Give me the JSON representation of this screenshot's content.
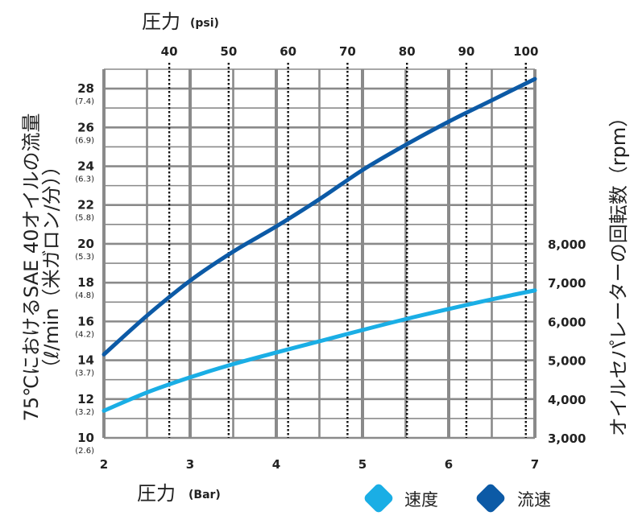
{
  "chart_data": {
    "type": "line",
    "x": [
      2,
      3,
      4,
      5,
      6,
      7
    ],
    "xlabel": "圧力",
    "xlabel_unit": "(Bar)",
    "xlim": [
      2,
      7
    ],
    "x2label": "圧力",
    "x2label_unit": "(psi)",
    "x2_ticks": [
      40,
      50,
      60,
      70,
      80,
      90,
      100
    ],
    "x2_bar_equivalent": [
      2.758,
      3.447,
      4.137,
      4.826,
      5.516,
      6.205,
      6.895
    ],
    "ylabel_line1": "75℃におけるSAE 40オイルの流量",
    "ylabel_line2": "（ℓ/min（米ガロン/分））",
    "ylim": [
      10,
      29
    ],
    "y_ticks": [
      10,
      12,
      14,
      16,
      18,
      20,
      22,
      24,
      26,
      28
    ],
    "y_sub_ticks": [
      "(2.6)",
      "(3.2)",
      "(3.7)",
      "(4.2)",
      "(4.8)",
      "(5.3)",
      "(5.8)",
      "(6.3)",
      "(6.9)",
      "(7.4)"
    ],
    "y2label": "オイルセパレーターの回転数（rpm）",
    "y2lim": [
      3000,
      8000
    ],
    "y2_ticks": [
      3000,
      4000,
      5000,
      6000,
      7000,
      8000
    ],
    "y2_tick_labels": [
      "3,000",
      "4,000",
      "5,000",
      "6,000",
      "7,000",
      "8,000"
    ],
    "grid": true,
    "legend_position": "bottom-right",
    "series": [
      {
        "name": "速度",
        "color": "#1aaee5",
        "axis": "right",
        "x": [
          2,
          2.5,
          3,
          3.5,
          4,
          4.5,
          5,
          5.5,
          6,
          6.5,
          7
        ],
        "values": [
          3700,
          4170,
          4560,
          4900,
          5200,
          5490,
          5780,
          6060,
          6320,
          6570,
          6800
        ]
      },
      {
        "name": "流速",
        "color": "#0c5aa6",
        "axis": "left",
        "x": [
          2,
          2.5,
          3,
          3.5,
          4,
          4.5,
          5,
          5.5,
          6,
          6.5,
          7
        ],
        "values": [
          14.3,
          16.3,
          18.1,
          19.6,
          20.9,
          22.3,
          23.8,
          25.1,
          26.3,
          27.4,
          28.5
        ]
      }
    ]
  }
}
